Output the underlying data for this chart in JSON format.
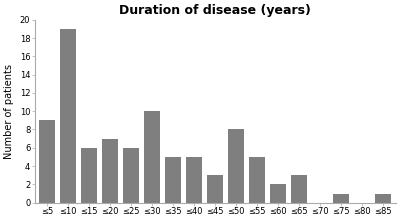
{
  "categories": [
    "≤5",
    "≤10",
    "≤15",
    "≤20",
    "≤25",
    "≤30",
    "≤35",
    "≤40",
    "≤45",
    "≤50",
    "≤55",
    "≤60",
    "≤65",
    "≤70",
    "≤75",
    "≤80",
    "≤85"
  ],
  "values": [
    9,
    19,
    6,
    7,
    6,
    10,
    5,
    5,
    3,
    8,
    5,
    2,
    3,
    0,
    1,
    0,
    1
  ],
  "bar_color": "#7f7f7f",
  "title": "Duration of disease (years)",
  "ylabel": "Number of patients",
  "ylim": [
    0,
    20
  ],
  "yticks": [
    0,
    2,
    4,
    6,
    8,
    10,
    12,
    14,
    16,
    18,
    20
  ],
  "title_fontsize": 9,
  "axis_label_fontsize": 7,
  "tick_fontsize": 6
}
